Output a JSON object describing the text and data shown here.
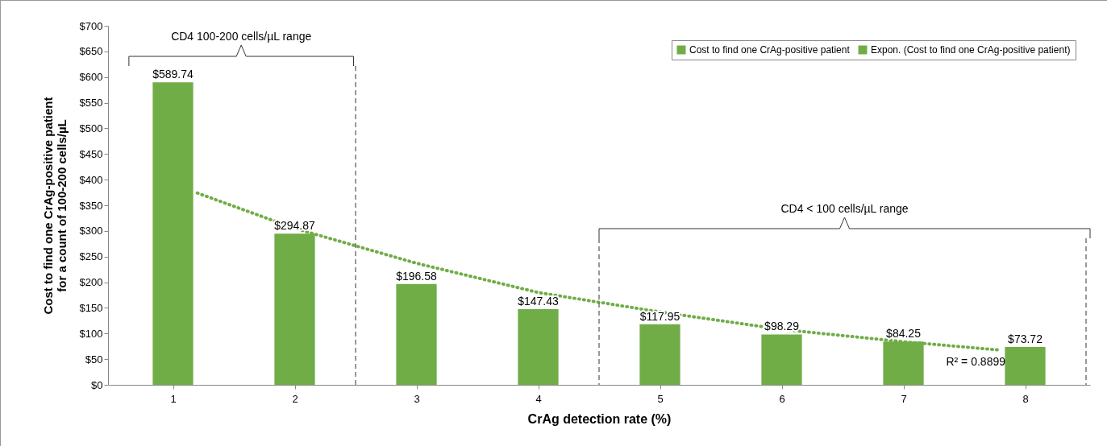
{
  "chart_data": {
    "type": "bar",
    "xlabel": "CrAg detection rate (%)",
    "ylabel": "Cost to find one CrAg-positive patient\nfor a count of 100-200 cells/µL",
    "x": [
      1,
      2,
      3,
      4,
      5,
      6,
      7,
      8
    ],
    "series": [
      {
        "name": "Cost to find one CrAg-positive patient",
        "color": "#70ad47",
        "values": [
          589.74,
          294.87,
          196.58,
          147.43,
          117.95,
          98.29,
          84.25,
          73.72
        ],
        "value_labels": [
          "$589.74",
          "$294.87",
          "$196.58",
          "$147.43",
          "$117.95",
          "$98.29",
          "$84.25",
          "$73.72"
        ]
      },
      {
        "name": "Expon. (Cost to find one CrAg-positive patient)",
        "type": "line",
        "color": "#70ad47",
        "line_style": "dotted",
        "x": [
          1.2,
          2,
          3,
          4,
          5,
          6,
          7,
          7.78
        ],
        "values": [
          374,
          305,
          237,
          180,
          142,
          108,
          84,
          68
        ]
      }
    ],
    "ref_lines": [
      {
        "axis": "x",
        "value": 2.5,
        "line_style": "dashed",
        "color": "#333333"
      },
      {
        "axis": "x",
        "value": 4.5,
        "line_style": "dashed",
        "color": "#333333"
      },
      {
        "axis": "x",
        "value": 8.5,
        "line_style": "dashed",
        "color": "#333333"
      }
    ],
    "xlim": [
      0.5,
      8.5
    ],
    "xticks": [
      1,
      2,
      3,
      4,
      5,
      6,
      7,
      8
    ],
    "ylim": [
      0,
      700
    ],
    "yticks": [
      {
        "value": 0,
        "label": "$0"
      },
      {
        "value": 50,
        "label": "$50"
      },
      {
        "value": 100,
        "label": "$100"
      },
      {
        "value": 150,
        "label": "$150"
      },
      {
        "value": 200,
        "label": "$200"
      },
      {
        "value": 250,
        "label": "$250"
      },
      {
        "value": 300,
        "label": "$300"
      },
      {
        "value": 350,
        "label": "$350"
      },
      {
        "value": 400,
        "label": "$400"
      },
      {
        "value": 450,
        "label": "$450"
      },
      {
        "value": 500,
        "label": "$500"
      },
      {
        "value": 550,
        "label": "$550"
      },
      {
        "value": 600,
        "label": "$600"
      },
      {
        "value": 650,
        "label": "$650"
      },
      {
        "value": 700,
        "label": "$700"
      }
    ],
    "legend": "top right",
    "annotations": [
      "CD4 100-200 cells/µL range",
      "CD4 < 100 cells/µL range",
      "R² = 0.8899"
    ]
  }
}
